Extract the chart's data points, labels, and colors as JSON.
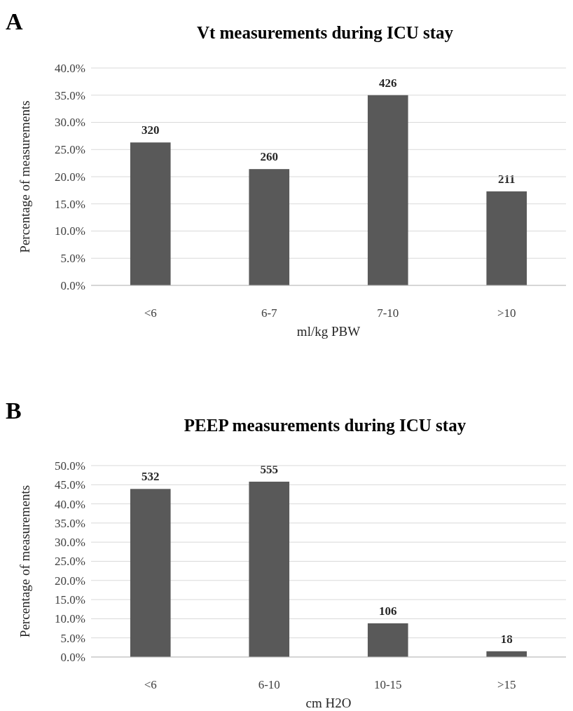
{
  "chart_data": [
    {
      "type": "bar",
      "title": "Vt measurements during ICU stay",
      "xlabel": "ml/kg PBW",
      "ylabel": "Percentage of measurements",
      "annotations": [
        "A",
        {
          "text": "320",
          "x": "<6",
          "y": 26.3
        },
        {
          "text": "260",
          "x": "6-7",
          "y": 21.4
        },
        {
          "text": "426",
          "x": "7-10",
          "y": 35.0
        },
        {
          "text": "211",
          "x": ">10",
          "y": 17.3
        }
      ],
      "categories": [
        "<6",
        "6-7",
        "7-10",
        ">10"
      ],
      "values": [
        26.3,
        21.4,
        35.0,
        17.3
      ],
      "color": "#595959",
      "ylim": [
        0,
        40
      ],
      "yticks": [
        {
          "value": 0,
          "label": "0.0%"
        },
        {
          "value": 5,
          "label": "5.0%"
        },
        {
          "value": 10,
          "label": "10.0%"
        },
        {
          "value": 15,
          "label": "15.0%"
        },
        {
          "value": 20,
          "label": "20.0%"
        },
        {
          "value": 25,
          "label": "25.0%"
        },
        {
          "value": 30,
          "label": "30.0%"
        },
        {
          "value": 35,
          "label": "35.0%"
        },
        {
          "value": 40,
          "label": "40.0%"
        }
      ],
      "grid": "y"
    },
    {
      "type": "bar",
      "title": "PEEP measurements during ICU stay",
      "xlabel": "cm H2O",
      "ylabel": "Percentage of measurements",
      "annotations": [
        "B",
        {
          "text": "532",
          "x": "<6",
          "y": 43.9
        },
        {
          "text": "555",
          "x": "6-10",
          "y": 45.8
        },
        {
          "text": "106",
          "x": "10-15",
          "y": 8.8
        },
        {
          "text": "18",
          "x": ">15",
          "y": 1.5
        }
      ],
      "categories": [
        "<6",
        "6-10",
        "10-15",
        ">15"
      ],
      "values": [
        43.9,
        45.8,
        8.8,
        1.5
      ],
      "color": "#595959",
      "ylim": [
        0,
        50
      ],
      "yticks": [
        {
          "value": 0,
          "label": "0.0%"
        },
        {
          "value": 5,
          "label": "5.0%"
        },
        {
          "value": 10,
          "label": "10.0%"
        },
        {
          "value": 15,
          "label": "15.0%"
        },
        {
          "value": 20,
          "label": "20.0%"
        },
        {
          "value": 25,
          "label": "25.0%"
        },
        {
          "value": 30,
          "label": "30.0%"
        },
        {
          "value": 35,
          "label": "35.0%"
        },
        {
          "value": 40,
          "label": "40.0%"
        },
        {
          "value": 45,
          "label": "45.0%"
        },
        {
          "value": 50,
          "label": "50.0%"
        }
      ],
      "grid": "y"
    }
  ]
}
